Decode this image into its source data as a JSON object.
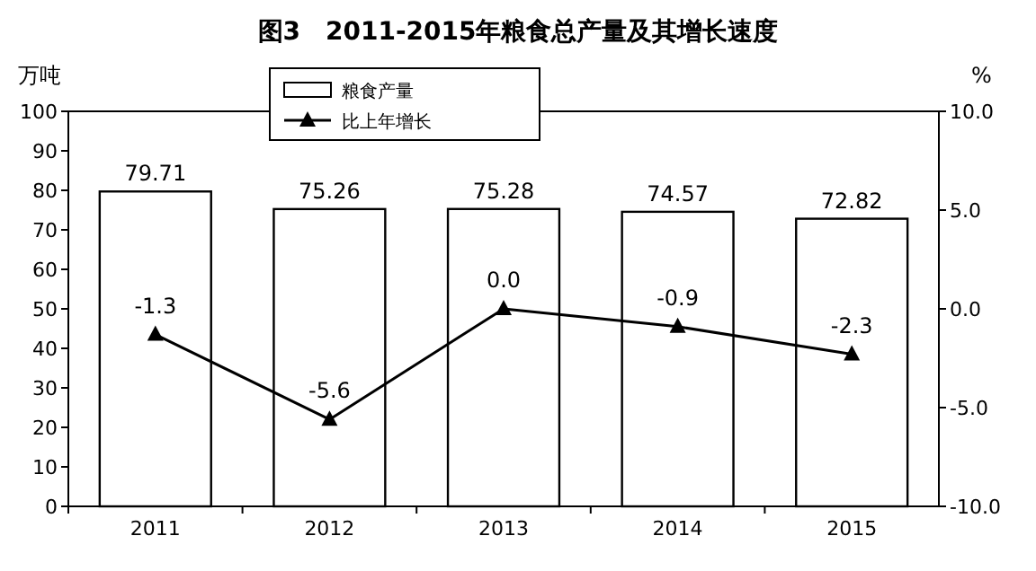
{
  "chart_data": {
    "type": "bar",
    "title": "图3　2011-2015年粮食总产量及其增长速度",
    "ylabel": "万吨",
    "y2label": "%",
    "categories": [
      "2011",
      "2012",
      "2013",
      "2014",
      "2015"
    ],
    "series": [
      {
        "name": "粮食产量",
        "color": "#ffffff",
        "values": [
          79.71,
          75.26,
          75.28,
          74.57,
          72.82
        ],
        "value_labels": [
          "79.71",
          "75.26",
          "75.28",
          "74.57",
          "72.82"
        ]
      },
      {
        "name": "比上年增长",
        "type": "line",
        "axis": "y2",
        "color": "#000000",
        "marker": "triangle",
        "values": [
          -1.3,
          -5.6,
          0.0,
          -0.9,
          -2.3
        ],
        "value_labels": [
          "-1.3",
          "-5.6",
          "0.0",
          "-0.9",
          "-2.3"
        ]
      }
    ],
    "ylim": [
      0,
      100
    ],
    "yticks": [
      0,
      10,
      20,
      30,
      40,
      50,
      60,
      70,
      80,
      90,
      100
    ],
    "y2lim": [
      -10,
      10
    ],
    "y2ticks": [
      {
        "value": -10,
        "label": "-10.0"
      },
      {
        "value": -5,
        "label": "-5.0"
      },
      {
        "value": 0,
        "label": "0.0"
      },
      {
        "value": 5,
        "label": "5.0"
      },
      {
        "value": 10,
        "label": "10.0"
      }
    ],
    "legend": "top left",
    "grid": false
  }
}
